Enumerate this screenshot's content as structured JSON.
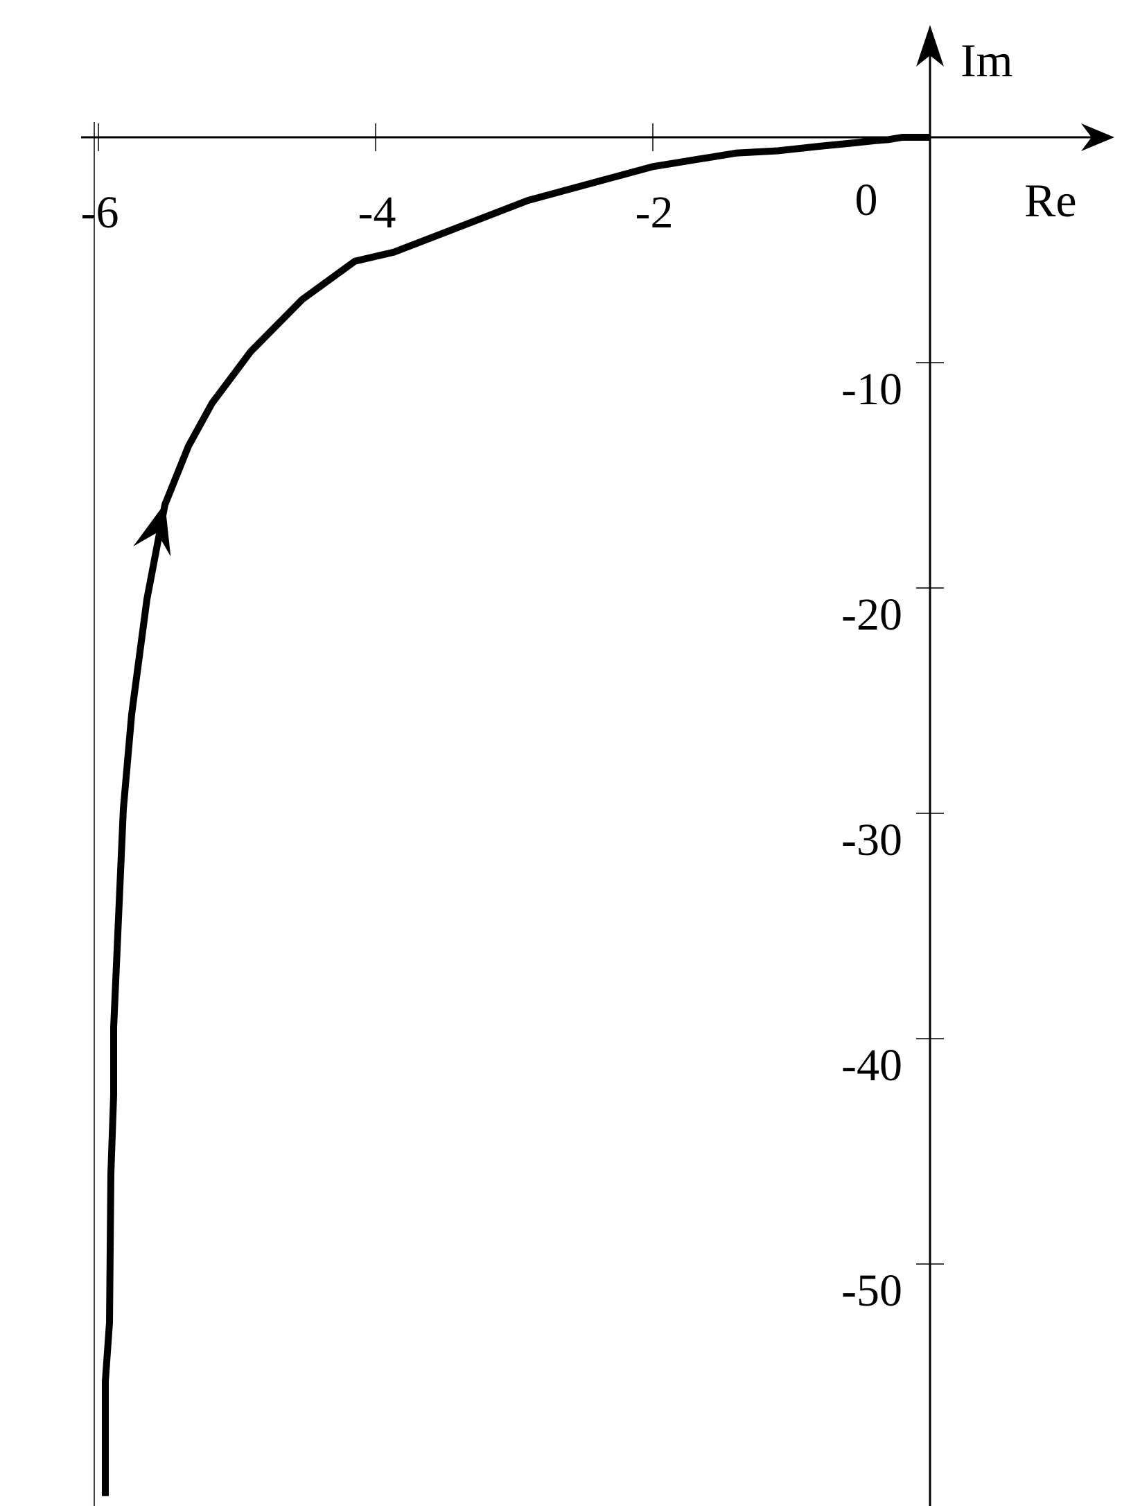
{
  "chart_data": {
    "type": "line",
    "title": "",
    "xlabel": "Re",
    "ylabel": "Im",
    "xlim": [
      -6.0,
      0.0
    ],
    "ylim": [
      -60.0,
      0.0
    ],
    "grid": false,
    "x_ticks": [
      -6,
      -4,
      -2,
      0
    ],
    "x_tick_labels": [
      "-6",
      "-4",
      "-2",
      "0"
    ],
    "y_ticks": [
      -10,
      -20,
      -30,
      -40,
      -50
    ],
    "y_tick_labels": [
      "-10",
      "-20",
      "-30",
      "-40",
      "-50"
    ],
    "series": [
      {
        "color": "#000000",
        "direction_arrow": "increasing-x",
        "points": [
          {
            "x": -5.95,
            "y": -60.3
          },
          {
            "x": -5.95,
            "y": -55.2
          },
          {
            "x": -5.92,
            "y": -52.6
          },
          {
            "x": -5.91,
            "y": -46.0
          },
          {
            "x": -5.89,
            "y": -42.5
          },
          {
            "x": -5.89,
            "y": -39.5
          },
          {
            "x": -5.82,
            "y": -29.8
          },
          {
            "x": -5.76,
            "y": -25.6
          },
          {
            "x": -5.65,
            "y": -20.5
          },
          {
            "x": -5.52,
            "y": -16.3
          },
          {
            "x": -5.35,
            "y": -13.7
          },
          {
            "x": -5.18,
            "y": -11.8
          },
          {
            "x": -4.9,
            "y": -9.5
          },
          {
            "x": -4.53,
            "y": -7.2
          },
          {
            "x": -4.15,
            "y": -5.5
          },
          {
            "x": -3.87,
            "y": -5.1
          },
          {
            "x": -2.9,
            "y": -2.8
          },
          {
            "x": -2.0,
            "y": -1.3
          },
          {
            "x": -1.4,
            "y": -0.7
          },
          {
            "x": -1.1,
            "y": -0.6
          },
          {
            "x": -0.8,
            "y": -0.4
          },
          {
            "x": -0.55,
            "y": -0.25
          },
          {
            "x": -0.4,
            "y": -0.15
          },
          {
            "x": -0.3,
            "y": -0.1
          },
          {
            "x": -0.2,
            "y": 0.0
          },
          {
            "x": 0.0,
            "y": 0.0
          }
        ]
      }
    ]
  }
}
